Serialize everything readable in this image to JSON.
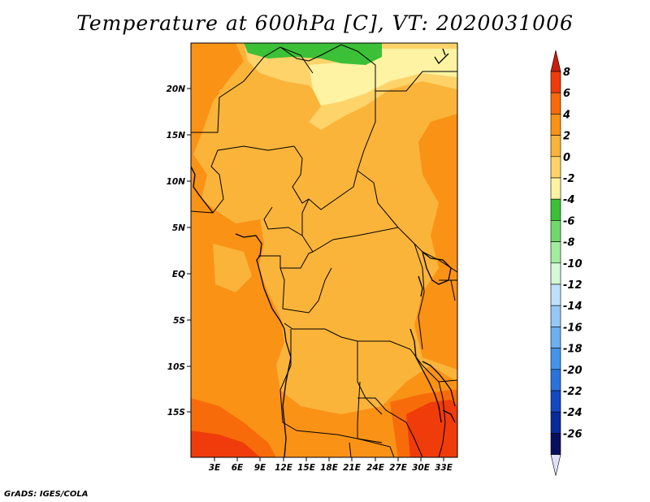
{
  "title": "Temperature at 600hPa [C], VT: 2020031006",
  "credit": "GrADS: IGES/COLA",
  "lat_labels": [
    "20N",
    "15N",
    "10N",
    "5N",
    "EQ",
    "5S",
    "10S",
    "15S"
  ],
  "lon_labels": [
    "3E",
    "6E",
    "9E",
    "12E",
    "15E",
    "18E",
    "21E",
    "24E",
    "27E",
    "30E",
    "33E"
  ],
  "colorbar": {
    "labels": [
      "8",
      "6",
      "4",
      "2",
      "0",
      "-2",
      "-4",
      "-6",
      "-8",
      "-10",
      "-12",
      "-14",
      "-16",
      "-18",
      "-20",
      "-22",
      "-24",
      "-26"
    ],
    "colors": [
      "#c81e0e",
      "#f03c0a",
      "#f86b0a",
      "#fa9216",
      "#fab43a",
      "#fdd36a",
      "#fdf3a2",
      "#3cc038",
      "#72d86c",
      "#a2eca0",
      "#d6f8d6",
      "#c0e0fa",
      "#96c8f5",
      "#6cb0f0",
      "#4494eb",
      "#2a72dc",
      "#1448c2",
      "#0a2a9a",
      "#08105e",
      "#e0e0fa"
    ]
  },
  "fields": {
    "colors": {
      "deep_red": "#f03c0a",
      "orange_red": "#f86b0a",
      "orange": "#fa9216",
      "light_orange": "#fab43a",
      "yellow": "#fdd36a",
      "pale_yellow": "#fdf3a2",
      "green": "#3cc038"
    }
  }
}
